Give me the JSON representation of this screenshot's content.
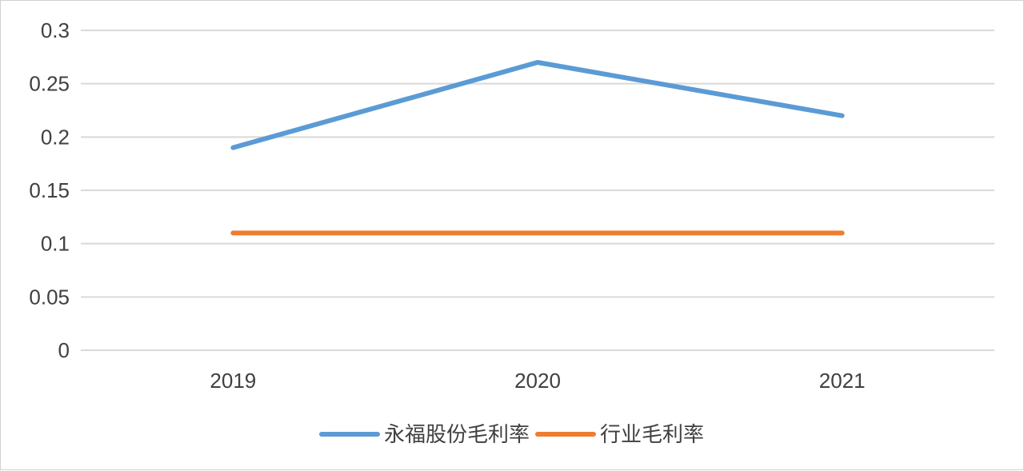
{
  "chart_data": {
    "type": "line",
    "categories": [
      "2019",
      "2020",
      "2021"
    ],
    "series": [
      {
        "name": "永福股份毛利率",
        "values": [
          0.19,
          0.27,
          0.22
        ],
        "color": "#5b9bd5"
      },
      {
        "name": "行业毛利率",
        "values": [
          0.11,
          0.11,
          0.11
        ],
        "color": "#ed7d31"
      }
    ],
    "ylim": [
      0,
      0.3
    ],
    "yticks": [
      "0",
      "0.05",
      "0.1",
      "0.15",
      "0.2",
      "0.25",
      "0.3"
    ],
    "grid": true,
    "gridline_color": "#d9d9d9",
    "legend_position": "bottom"
  }
}
